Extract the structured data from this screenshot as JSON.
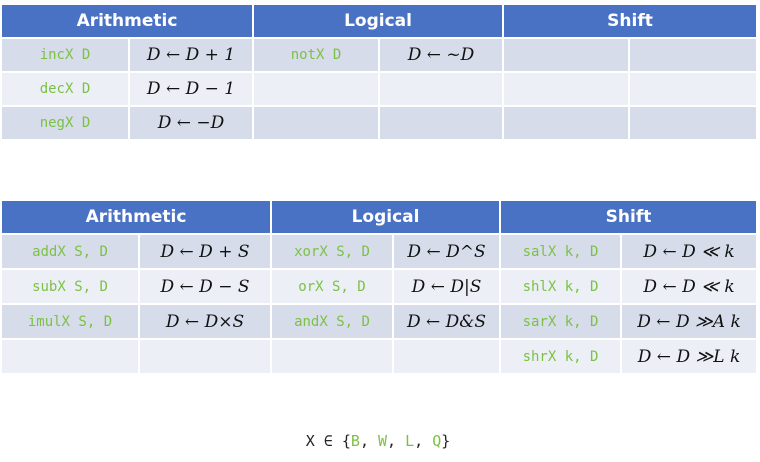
{
  "headers": {
    "arithmetic": "Arithmetic",
    "logical": "Logical",
    "shift": "Shift"
  },
  "unary_table": {
    "rows": [
      {
        "arith_instr": "incX D",
        "arith_effect": "D ← D + 1",
        "logic_instr": "notX D",
        "logic_effect": "D ← ~D",
        "shift_instr": "",
        "shift_effect": ""
      },
      {
        "arith_instr": "decX D",
        "arith_effect": "D ← D − 1",
        "logic_instr": "",
        "logic_effect": "",
        "shift_instr": "",
        "shift_effect": ""
      },
      {
        "arith_instr": "negX D",
        "arith_effect": "D ← −D",
        "logic_instr": "",
        "logic_effect": "",
        "shift_instr": "",
        "shift_effect": ""
      }
    ]
  },
  "binary_table": {
    "rows": [
      {
        "arith_instr": "addX S, D",
        "arith_effect": "D ← D + S",
        "logic_instr": "xorX S, D",
        "logic_effect": "D ← D^S",
        "shift_instr": "salX k, D",
        "shift_effect": "D ← D ≪ k"
      },
      {
        "arith_instr": "subX S, D",
        "arith_effect": "D ← D − S",
        "logic_instr": "orX S, D",
        "logic_effect": "D ← D|S",
        "shift_instr": "shlX k, D",
        "shift_effect": "D ← D ≪ k"
      },
      {
        "arith_instr": "imulX S, D",
        "arith_effect": "D ← D×S",
        "logic_instr": "andX S, D",
        "logic_effect": "D ← D&S",
        "shift_instr": "sarX k, D",
        "shift_effect": "D ← D ≫A k"
      },
      {
        "arith_instr": "",
        "arith_effect": "",
        "logic_instr": "",
        "logic_effect": "",
        "shift_instr": "shrX k, D",
        "shift_effect": "D ← D ≫L k"
      }
    ]
  },
  "footer": {
    "prefix": "X ∈ {",
    "suffixes": [
      "B",
      "W",
      "L",
      "Q"
    ],
    "separator": ", ",
    "close": "}"
  }
}
